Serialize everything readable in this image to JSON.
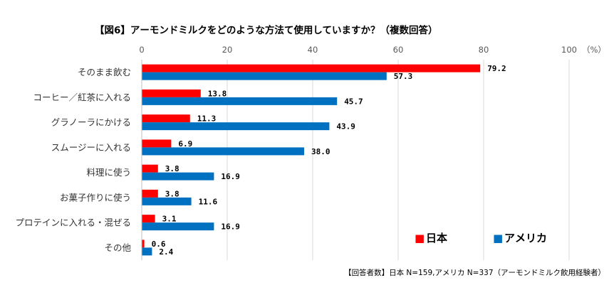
{
  "chart_data": {
    "type": "bar",
    "orientation": "horizontal",
    "title": "【図6】アーモンドミルクをどのような方法て使用していますか？（複数回答）",
    "categories": [
      "そのまま飲む",
      "コーヒー／紅茶に入れる",
      "グラノーラにかける",
      "スムージーに入れる",
      "料理に使う",
      "お菓子作りに使う",
      "プロテインに入れる・混ぜる",
      "その他"
    ],
    "series": [
      {
        "name": "日本",
        "color": "#ff0000",
        "values": [
          79.2,
          13.8,
          11.3,
          6.9,
          3.8,
          3.8,
          3.1,
          0.6
        ],
        "labels": [
          "79.2",
          "13.8",
          "11.3",
          "6.9",
          "3.8",
          "3.8",
          "3.1",
          "0.6"
        ]
      },
      {
        "name": "アメリカ",
        "color": "#0070c0",
        "values": [
          57.3,
          45.7,
          43.9,
          38.0,
          16.9,
          11.6,
          16.9,
          2.4
        ],
        "labels": [
          "57.3",
          "45.7",
          "43.9",
          "38.0",
          "16.9",
          "11.6",
          "16.9",
          "2.4"
        ]
      }
    ],
    "xlim": [
      0,
      100
    ],
    "xticks": [
      0,
      20,
      40,
      60,
      80,
      100
    ],
    "xtick_labels": [
      "0",
      "20",
      "40",
      "60",
      "80",
      "100"
    ],
    "unit_label": "（%）",
    "grid": true,
    "legend_position": "bottom-right",
    "legend_marker": "■",
    "note": "【回答者数】日本 N=159,アメリカ N=337（アーモンドミルク飲用経験者）"
  }
}
